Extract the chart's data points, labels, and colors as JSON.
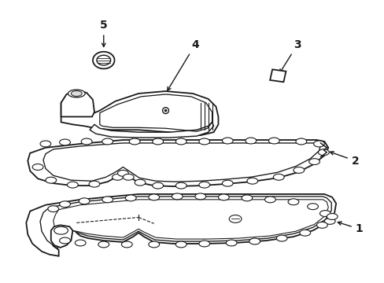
{
  "background_color": "#ffffff",
  "line_color": "#1a1a1a",
  "line_width": 1.3,
  "label_fontsize": 10,
  "figsize": [
    4.89,
    3.6
  ],
  "dpi": 100
}
